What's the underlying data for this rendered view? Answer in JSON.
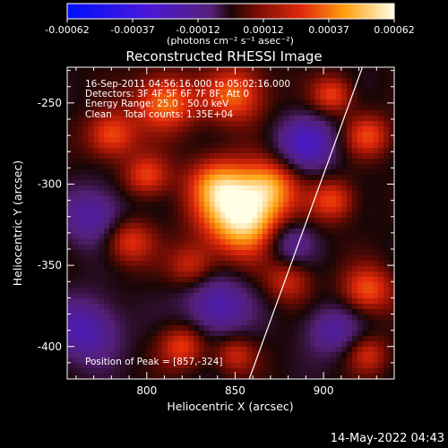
{
  "chart_data": {
    "type": "heatmap",
    "title": "Reconstructed RHESSI Image",
    "xlabel": "Heliocentric X (arcsec)",
    "ylabel": "Heliocentric Y (arcsec)",
    "xlim": [
      755,
      940
    ],
    "ylim": [
      -420,
      -228
    ],
    "x_ticks": [
      800,
      850,
      900
    ],
    "y_ticks": [
      -250,
      -300,
      -350,
      -400
    ],
    "annotations": [
      "16-Sep-2011 04:56:16.000 to 05:02:16.000",
      "Detectors: 3F 4F 5F 6F 7F 8F, Att 0",
      "Energy Range: 25.0 - 50.0 keV",
      "Clean    Total counts: 1.35E+04"
    ],
    "peak_label": "Position of Peak = [857,-324]",
    "peak": {
      "x": 857,
      "y": -324
    },
    "colorbar": {
      "ticks": [
        "-0.00062",
        "-0.00037",
        "-0.00012",
        "0.00012",
        "0.00037",
        "0.00062"
      ],
      "units_label": "(photons cm⁻² s⁻¹ asec⁻²)",
      "range": [
        -0.00062,
        0.00062
      ]
    },
    "limb_line": {
      "x1": 858,
      "y1": -420,
      "x2": 922,
      "y2": -228
    },
    "sources": [
      {
        "x": 855,
        "y": -320,
        "amp": 1.0,
        "s": 16
      },
      {
        "x": 840,
        "y": -300,
        "amp": 0.55,
        "s": 12
      },
      {
        "x": 870,
        "y": -300,
        "amp": 0.5,
        "s": 11
      },
      {
        "x": 810,
        "y": -250,
        "amp": 0.6,
        "s": 12
      },
      {
        "x": 850,
        "y": -245,
        "amp": 0.55,
        "s": 12
      },
      {
        "x": 780,
        "y": -270,
        "amp": 0.5,
        "s": 10
      },
      {
        "x": 800,
        "y": -295,
        "amp": 0.45,
        "s": 9
      },
      {
        "x": 925,
        "y": -270,
        "amp": 0.45,
        "s": 9
      },
      {
        "x": 905,
        "y": -245,
        "amp": 0.45,
        "s": 8
      },
      {
        "x": 905,
        "y": -310,
        "amp": 0.45,
        "s": 9
      },
      {
        "x": 880,
        "y": -360,
        "amp": 0.35,
        "s": 9
      },
      {
        "x": 925,
        "y": -365,
        "amp": 0.5,
        "s": 10
      },
      {
        "x": 790,
        "y": -335,
        "amp": 0.45,
        "s": 10
      },
      {
        "x": 825,
        "y": -350,
        "amp": 0.35,
        "s": 9
      },
      {
        "x": 820,
        "y": -400,
        "amp": 0.45,
        "s": 9
      },
      {
        "x": 850,
        "y": -405,
        "amp": 0.35,
        "s": 8
      },
      {
        "x": 925,
        "y": -405,
        "amp": 0.35,
        "s": 8
      },
      {
        "x": 765,
        "y": -390,
        "amp": -0.45,
        "s": 14
      },
      {
        "x": 770,
        "y": -320,
        "amp": -0.4,
        "s": 13
      },
      {
        "x": 840,
        "y": -375,
        "amp": -0.45,
        "s": 13
      },
      {
        "x": 890,
        "y": -275,
        "amp": -0.5,
        "s": 12
      },
      {
        "x": 880,
        "y": -335,
        "amp": -0.4,
        "s": 10
      },
      {
        "x": 905,
        "y": -390,
        "amp": -0.35,
        "s": 11
      }
    ]
  },
  "footer": {
    "timestamp": "14-May-2022 04:43"
  }
}
